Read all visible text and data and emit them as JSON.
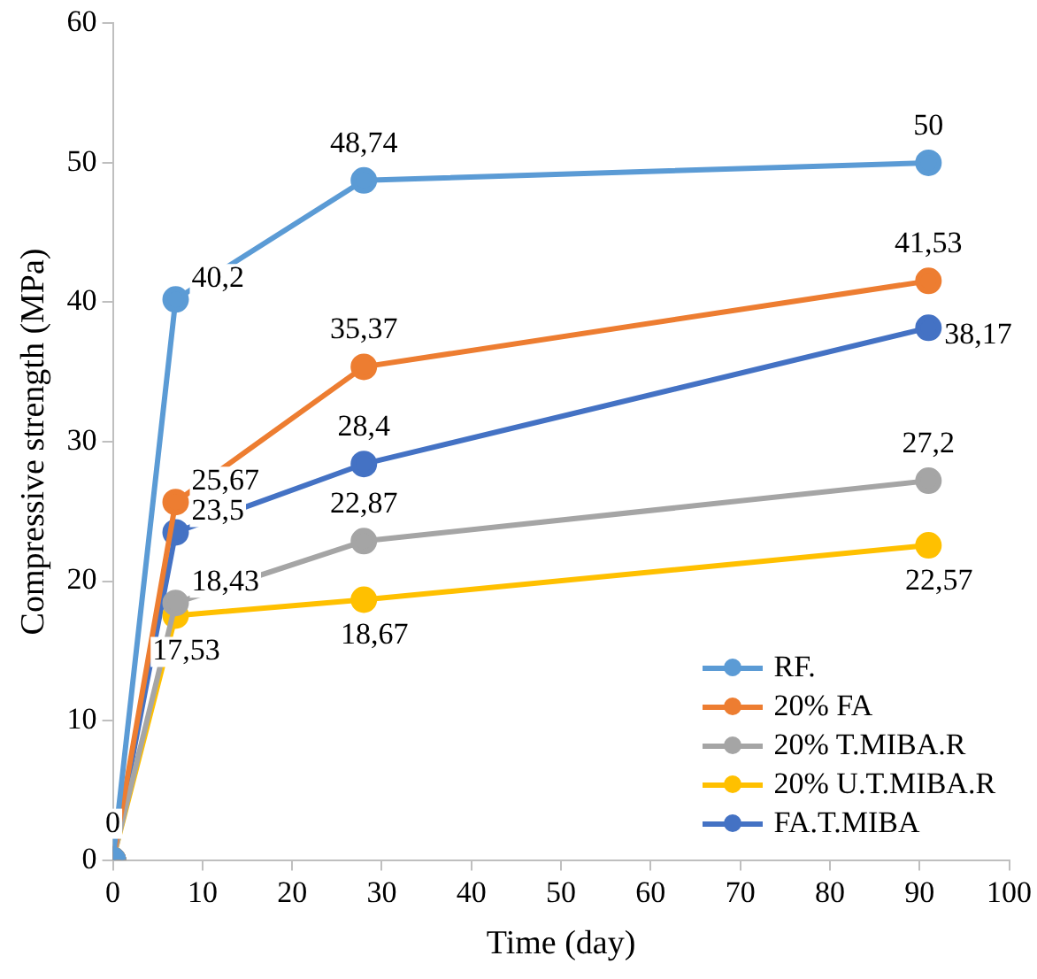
{
  "chart_data": {
    "type": "line",
    "xlabel": "Time (day)",
    "ylabel": "Compressive strength (MPa)",
    "x": [
      0,
      7,
      28,
      91
    ],
    "series": [
      {
        "name": "RF.",
        "color": "#5b9bd5",
        "values": [
          0,
          40.2,
          48.74,
          50
        ],
        "value_labels": [
          "0",
          "40,2",
          "48,74",
          "50"
        ]
      },
      {
        "name": "20% FA",
        "color": "#ed7d31",
        "values": [
          0,
          25.67,
          35.37,
          41.53
        ],
        "value_labels": [
          null,
          "25,67",
          "35,37",
          "41,53"
        ]
      },
      {
        "name": "20% T.MIBA.R",
        "color": "#a5a5a5",
        "values": [
          0,
          18.43,
          22.87,
          27.2
        ],
        "value_labels": [
          null,
          "18,43",
          "22,87",
          "27,2"
        ]
      },
      {
        "name": "20% U.T.MIBA.R",
        "color": "#ffc000",
        "values": [
          0,
          17.53,
          18.67,
          22.57
        ],
        "value_labels": [
          null,
          "17,53",
          "18,67",
          "22,57"
        ]
      },
      {
        "name": "FA.T.MIBA",
        "color": "#4472c4",
        "values": [
          0,
          23.5,
          28.4,
          38.17
        ],
        "value_labels": [
          null,
          "23,5",
          "28,4",
          "38,17"
        ]
      }
    ],
    "xlim": [
      0,
      100
    ],
    "xticks": [
      0,
      10,
      20,
      30,
      40,
      50,
      60,
      70,
      80,
      90,
      100
    ],
    "ylim": [
      0,
      60
    ],
    "yticks": [
      0,
      10,
      20,
      30,
      40,
      50,
      60
    ],
    "grid": false,
    "legend": "bottom right",
    "marker": "circle",
    "line_style": "solid"
  }
}
